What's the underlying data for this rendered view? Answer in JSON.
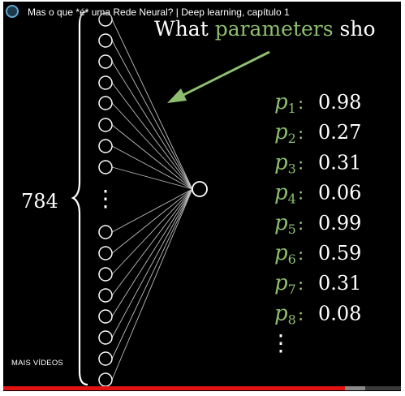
{
  "player": {
    "title": "Mas o que *é* uma Rede Neural? | Deep learning, capítulo 1",
    "channel_icon": "channel-avatar-icon",
    "more_videos_label": "MAIS VÍDEOS",
    "progress_fraction": 0.86,
    "buffered_fraction": 0.91,
    "colors": {
      "progress": "#e21212",
      "text": "#ffffff",
      "accent": "#8dbf6e"
    }
  },
  "scene": {
    "question_prefix": "What ",
    "question_highlight": "parameters",
    "question_suffix": " sho",
    "neuron_count_label": "784",
    "ellipsis": "⋮",
    "params": [
      {
        "name": "p",
        "sub": "1",
        "value": "0.98"
      },
      {
        "name": "p",
        "sub": "2",
        "value": "0.27"
      },
      {
        "name": "p",
        "sub": "3",
        "value": "0.31"
      },
      {
        "name": "p",
        "sub": "4",
        "value": "0.06"
      },
      {
        "name": "p",
        "sub": "5",
        "value": "0.99"
      },
      {
        "name": "p",
        "sub": "6",
        "value": "0.59"
      },
      {
        "name": "p",
        "sub": "7",
        "value": "0.31"
      },
      {
        "name": "p",
        "sub": "8",
        "value": "0.08"
      }
    ]
  }
}
